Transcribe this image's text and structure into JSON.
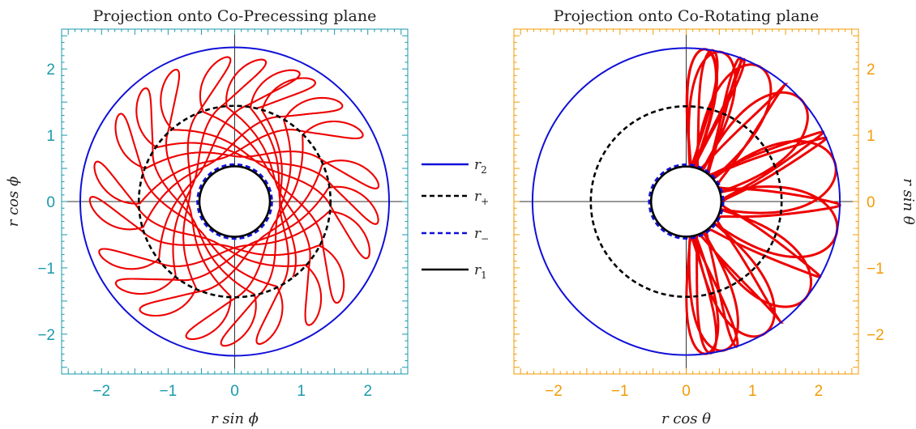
{
  "chart_data": [
    {
      "type": "scatter",
      "panel": "left",
      "title": "Projection onto Co-Precessing plane",
      "xlabel": "r sin ϕ",
      "ylabel": "r cos ϕ",
      "xlim": [
        -2.6,
        2.6
      ],
      "ylim": [
        -2.6,
        2.6
      ],
      "xticks": [
        -2,
        -1,
        0,
        1,
        2
      ],
      "yticks": [
        -2,
        -1,
        0,
        1,
        2
      ],
      "xtick_labels": [
        "−2",
        "−1",
        "0",
        "1",
        "2"
      ],
      "ytick_labels": [
        "−2",
        "−1",
        "0",
        "1",
        "2"
      ],
      "frame_color": "#1a9aab",
      "circles": [
        {
          "name": "r2",
          "radius": 2.32,
          "style": "solid",
          "color": "#1010d8"
        },
        {
          "name": "r+",
          "radius": 1.44,
          "style": "dashed",
          "color": "#000000"
        },
        {
          "name": "r−",
          "radius": 0.56,
          "style": "dashed",
          "color": "#1010d8"
        },
        {
          "name": "r1",
          "radius": 0.53,
          "style": "solid",
          "color": "#000000"
        }
      ],
      "trajectory": {
        "color": "#ee0000",
        "r_min": 0.53,
        "r_max": 2.32,
        "r_plus": 1.44
      }
    },
    {
      "type": "scatter",
      "panel": "right",
      "title": "Projection onto Co-Rotating plane",
      "xlabel": "r cos θ",
      "ylabel": "r sin θ",
      "xlim": [
        -2.6,
        2.6
      ],
      "ylim": [
        -2.6,
        2.6
      ],
      "xticks": [
        -2,
        -1,
        0,
        1,
        2
      ],
      "yticks": [
        -2,
        -1,
        0,
        1,
        2
      ],
      "xtick_labels": [
        "−2",
        "−1",
        "0",
        "1",
        "2"
      ],
      "ytick_labels": [
        "−2",
        "−1",
        "0",
        "1",
        "2"
      ],
      "frame_color": "#f29b05",
      "circles": [
        {
          "name": "r2",
          "radius": 2.32,
          "style": "solid",
          "color": "#1010d8"
        },
        {
          "name": "r+",
          "radius": 1.44,
          "style": "dashed",
          "color": "#000000"
        },
        {
          "name": "r−",
          "radius": 0.56,
          "style": "dashed",
          "color": "#1010d8"
        },
        {
          "name": "r1",
          "radius": 0.53,
          "style": "solid",
          "color": "#000000"
        }
      ],
      "trajectory": {
        "color": "#ee0000",
        "half_plane": "x>0",
        "r_min": 0.53,
        "r_max": 2.32
      }
    }
  ],
  "legend": {
    "placement": "center",
    "entries": [
      {
        "label": "r",
        "sub": "2",
        "style": "solid",
        "color": "#1010d8"
      },
      {
        "label": "r",
        "sub": "+",
        "style": "dashed",
        "color": "#000000"
      },
      {
        "label": "r",
        "sub": "−",
        "style": "dashed",
        "color": "#1010d8"
      },
      {
        "label": "r",
        "sub": "1",
        "style": "solid",
        "color": "#000000"
      }
    ]
  }
}
